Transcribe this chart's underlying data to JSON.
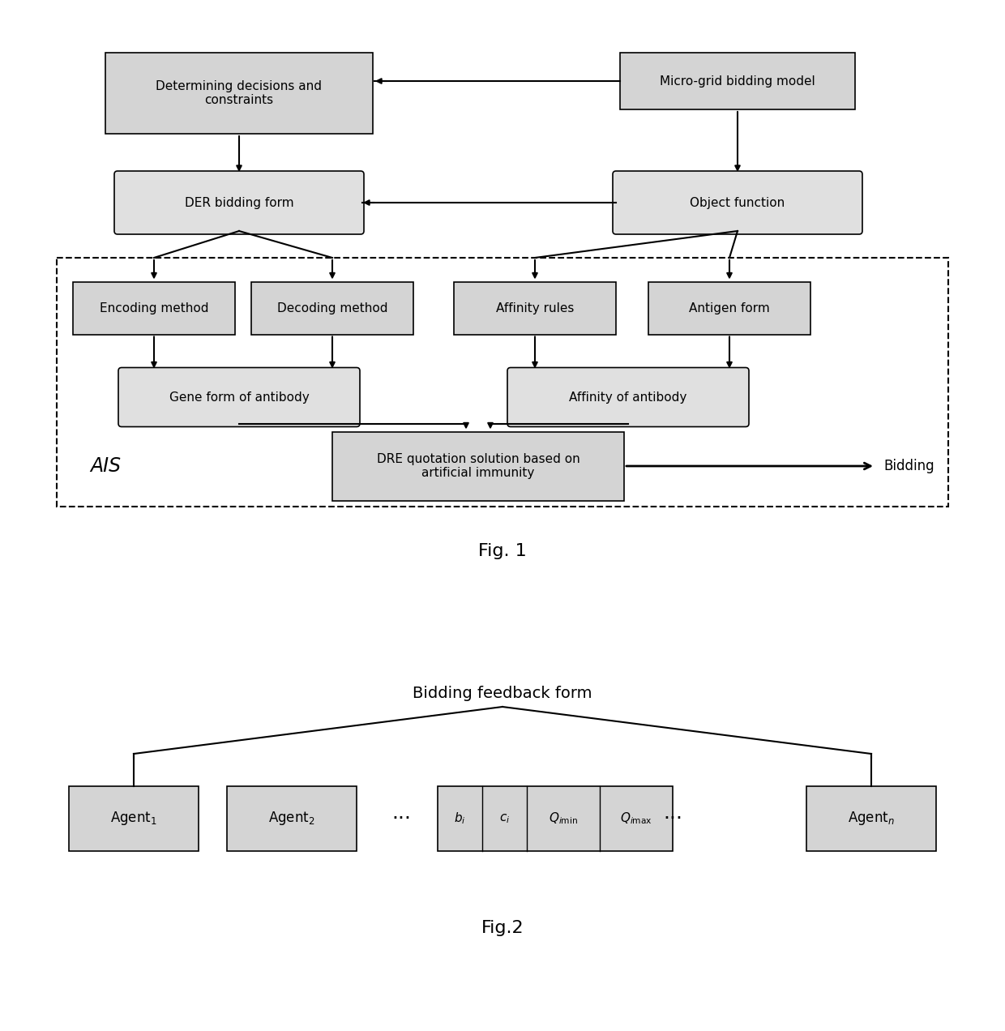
{
  "bg_color": "#ffffff",
  "fig_width": 12.4,
  "fig_height": 12.72,
  "fig1_caption": "Fig. 1",
  "fig2_caption": "Fig.2",
  "box_fill": "#d4d4d4",
  "box_edge": "#000000",
  "rounded_fill": "#e0e0e0",
  "rounded_edge": "#000000",
  "text_color": "#000000",
  "font_size": 11,
  "caption_font_size": 16,
  "AIS_font_size": 17,
  "fig2_title": "Bidding feedback form",
  "fig2_title_fontsize": 14
}
